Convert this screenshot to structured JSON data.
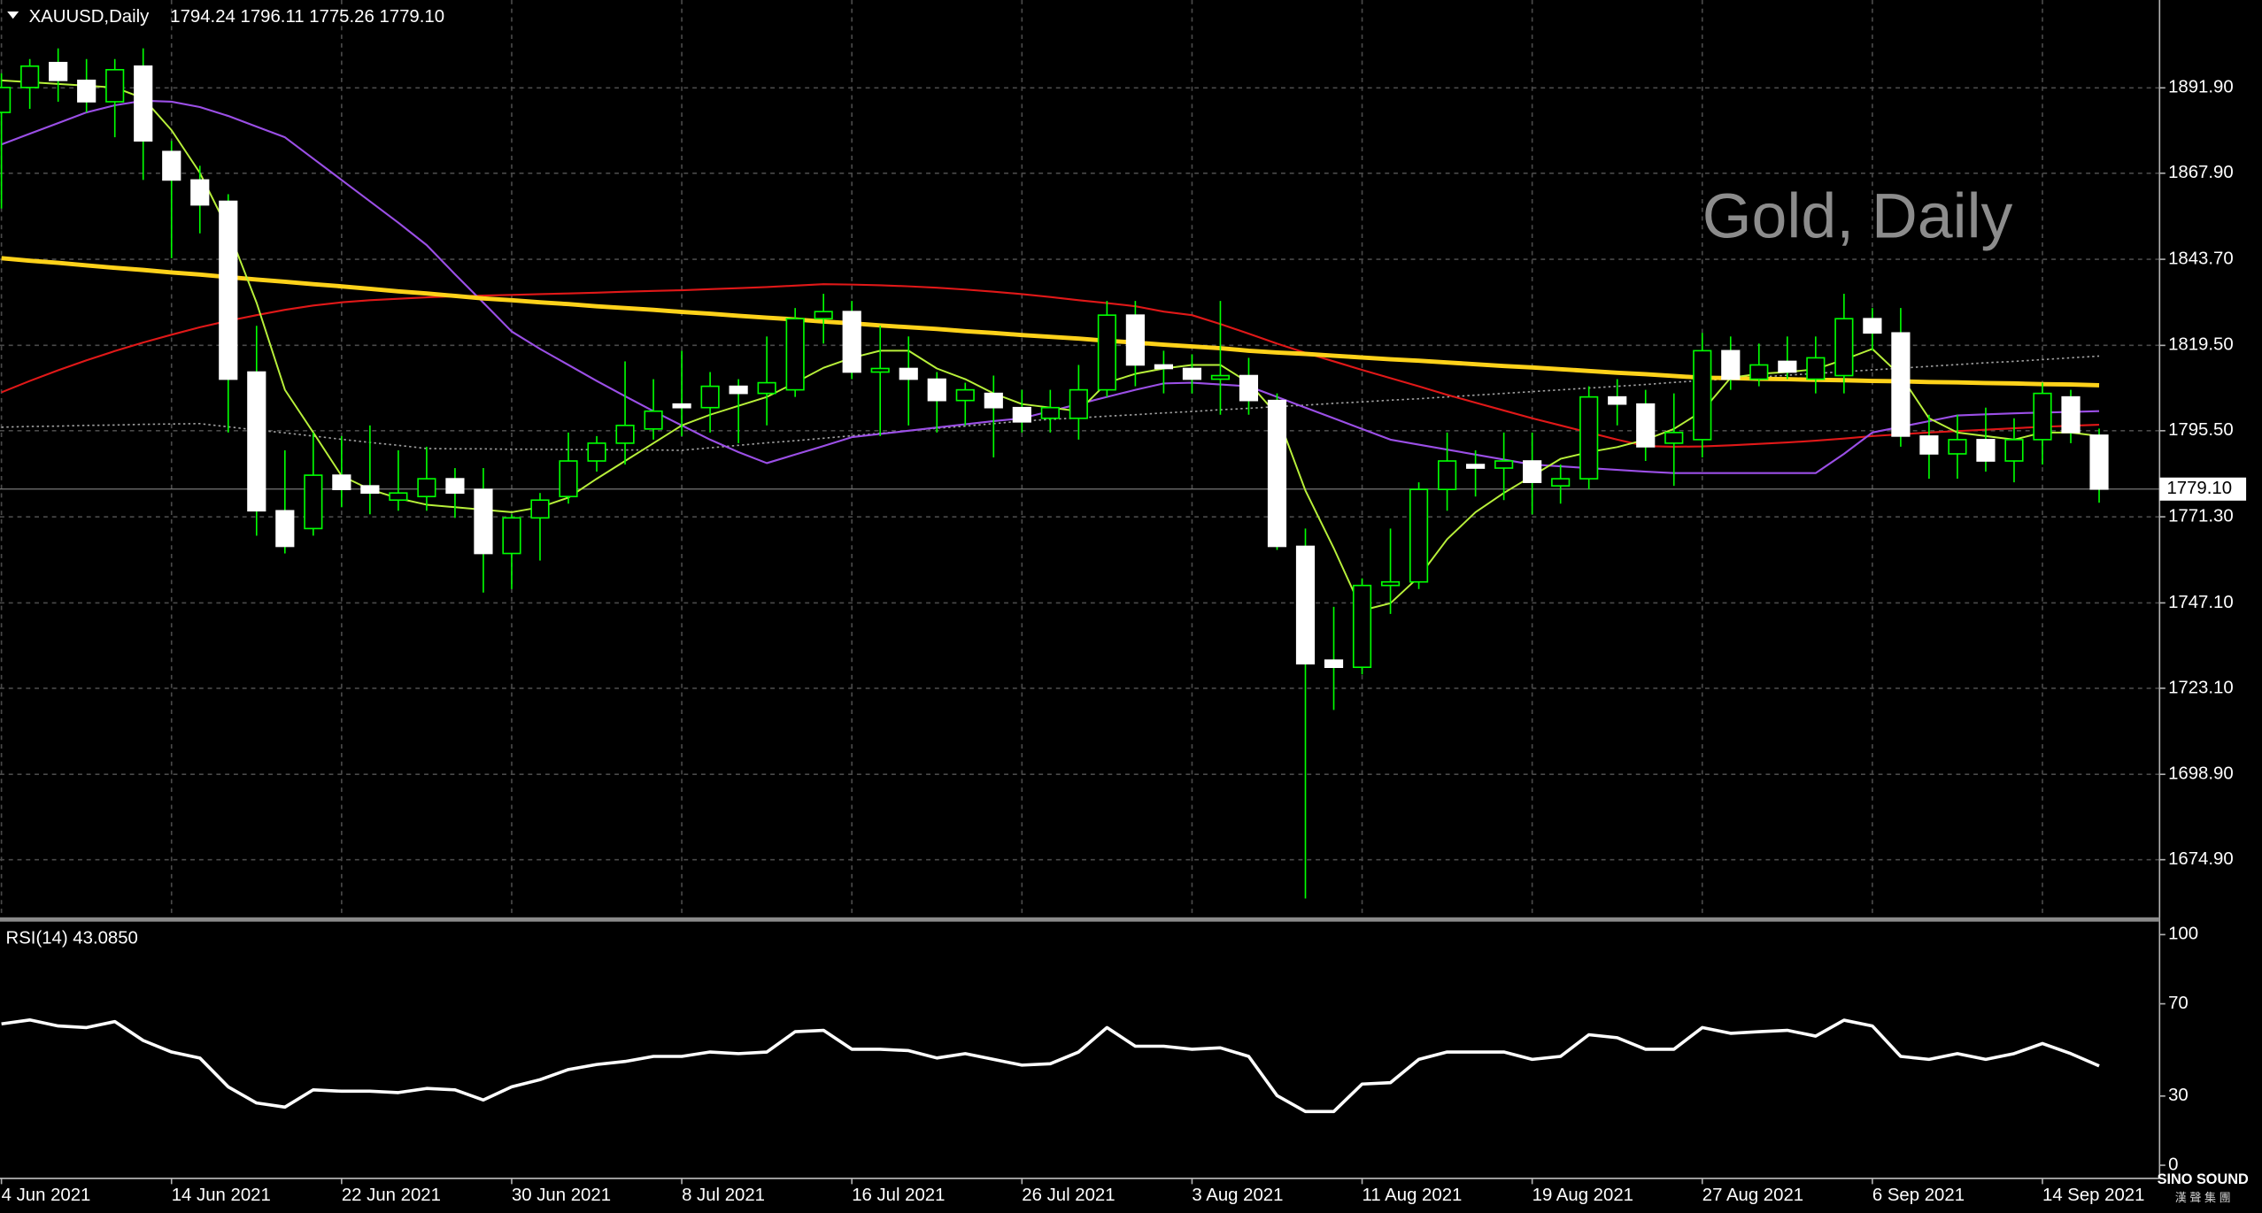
{
  "header": {
    "symbol": "XAUUSD,Daily",
    "ohlc": "1794.24 1796.11 1775.26 1779.10"
  },
  "watermark": "Gold, Daily",
  "logo": {
    "name": "SINO SOUND",
    "subtitle": "漢 聲 集 團"
  },
  "chart_data": [
    {
      "type": "candlestick",
      "categories": [
        "4 Jun 2021",
        null,
        null,
        null,
        null,
        null,
        "14 Jun 2021",
        null,
        null,
        null,
        null,
        null,
        "22 Jun 2021",
        null,
        null,
        null,
        null,
        null,
        "30 Jun 2021",
        null,
        null,
        null,
        null,
        null,
        "8 Jul 2021",
        null,
        null,
        null,
        null,
        null,
        "16 Jul 2021",
        null,
        null,
        null,
        null,
        null,
        "26 Jul 2021",
        null,
        null,
        null,
        null,
        null,
        "3 Aug 2021",
        null,
        null,
        null,
        null,
        null,
        "11 Aug 2021",
        null,
        null,
        null,
        null,
        null,
        "19 Aug 2021",
        null,
        null,
        null,
        null,
        null,
        "27 Aug 2021",
        null,
        null,
        null,
        null,
        null,
        "6 Sep 2021",
        null,
        null,
        null,
        null,
        null,
        "14 Sep 2021",
        null,
        null
      ],
      "open": [
        1885,
        1892,
        1899,
        1894,
        1888,
        1898,
        1874,
        1866,
        1860,
        1812,
        1773,
        1768,
        1783,
        1780,
        1776,
        1777,
        1782,
        1779,
        1761,
        1771,
        1777,
        1787,
        1792,
        1796,
        1803,
        1802,
        1808,
        1806,
        1807,
        1827,
        1829,
        1812,
        1813,
        1810,
        1804,
        1806,
        1802,
        1799,
        1799,
        1807,
        1828,
        1814,
        1813,
        1810,
        1811,
        1804,
        1763,
        1731,
        1729,
        1752,
        1753,
        1779,
        1786,
        1785,
        1787,
        1780,
        1782,
        1805,
        1803,
        1792,
        1793,
        1818,
        1810,
        1815,
        1810,
        1811,
        1827,
        1823,
        1794,
        1789,
        1793,
        1787,
        1793,
        1805,
        1794.24
      ],
      "high": [
        1896,
        1900,
        1903,
        1900,
        1900,
        1903,
        1877,
        1870,
        1862,
        1825,
        1790,
        1795,
        1794,
        1797,
        1790,
        1791,
        1785,
        1785,
        1772,
        1778,
        1795,
        1794,
        1815,
        1810,
        1818,
        1812,
        1810,
        1822,
        1830,
        1834,
        1832,
        1825,
        1822,
        1812,
        1809,
        1811,
        1807,
        1807,
        1814,
        1832,
        1832,
        1818,
        1817,
        1832,
        1816,
        1806,
        1768,
        1746,
        1754,
        1768,
        1781,
        1795,
        1790,
        1795,
        1795,
        1786,
        1808,
        1810,
        1807,
        1806,
        1823,
        1822,
        1820,
        1822,
        1822,
        1834,
        1830,
        1830,
        1800,
        1800,
        1802,
        1799,
        1809,
        1807,
        1796.11
      ],
      "low": [
        1858,
        1886,
        1888,
        1885,
        1878,
        1866,
        1844,
        1851,
        1795,
        1766,
        1761,
        1766,
        1774,
        1772,
        1773,
        1773,
        1771,
        1750,
        1751,
        1759,
        1775,
        1784,
        1786,
        1793,
        1794,
        1795,
        1792,
        1797,
        1805,
        1820,
        1810,
        1794,
        1797,
        1795,
        1797,
        1788,
        1795,
        1795,
        1793,
        1805,
        1808,
        1806,
        1806,
        1800,
        1800,
        1762,
        1664,
        1717,
        1727,
        1744,
        1751,
        1773,
        1777,
        1776,
        1772,
        1775,
        1779,
        1797,
        1787,
        1780,
        1788,
        1807,
        1808,
        1810,
        1806,
        1806,
        1818,
        1791,
        1782,
        1782,
        1784,
        1781,
        1786,
        1792,
        1775.26
      ],
      "close": [
        1892,
        1898,
        1894,
        1888,
        1897,
        1877,
        1866,
        1859,
        1810,
        1773,
        1763,
        1783,
        1779,
        1778,
        1778,
        1782,
        1778,
        1761,
        1771,
        1776,
        1787,
        1792,
        1797,
        1801,
        1802,
        1808,
        1806,
        1809,
        1827,
        1829,
        1812,
        1813,
        1810,
        1804,
        1807,
        1802,
        1798,
        1802,
        1807,
        1828,
        1814,
        1813,
        1810,
        1811,
        1804,
        1763,
        1730,
        1729,
        1752,
        1753,
        1779,
        1787,
        1785,
        1787,
        1781,
        1782,
        1805,
        1803,
        1791,
        1795,
        1818,
        1810,
        1814,
        1812,
        1816,
        1827,
        1823,
        1794,
        1789,
        1793,
        1787,
        1793,
        1806,
        1795,
        1779.1
      ],
      "up_color": "#00ff00",
      "down_color": "#ffffff",
      "wick_color": "#00ff00",
      "overlays": [
        {
          "color": "#a0a0a0",
          "style": "dotted",
          "line_width": 1,
          "values": [
            1796.5,
            1796.7,
            1796.8,
            1797.0,
            1797.1,
            1797.3,
            1797.4,
            1797.5,
            1796.6,
            1795.7,
            1794.9,
            1794.0,
            1793.1,
            1792.2,
            1791.4,
            1790.5,
            1790.4,
            1790.4,
            1790.3,
            1790.3,
            1790.2,
            1790.2,
            1790.1,
            1790.1,
            1790.0,
            1790.7,
            1791.4,
            1792.1,
            1792.7,
            1793.4,
            1794.1,
            1794.8,
            1795.5,
            1796.2,
            1796.8,
            1797.5,
            1798.2,
            1798.7,
            1799.1,
            1799.6,
            1800.0,
            1800.5,
            1800.9,
            1801.4,
            1801.8,
            1802.3,
            1802.7,
            1803.2,
            1803.6,
            1804.1,
            1804.5,
            1805.0,
            1805.5,
            1806.0,
            1806.5,
            1807.0,
            1807.5,
            1808.0,
            1808.5,
            1809.1,
            1809.6,
            1810.1,
            1810.6,
            1811.1,
            1811.6,
            1812.1,
            1812.6,
            1813.1,
            1813.6,
            1814.1,
            1814.6,
            1815.0,
            1815.5,
            1816.0,
            1816.5
          ]
        },
        {
          "color": "#e01818",
          "style": "solid",
          "line_width": 1.3,
          "values": [
            1806.3,
            1809.5,
            1812.5,
            1815.3,
            1817.9,
            1820.3,
            1822.5,
            1824.6,
            1826.4,
            1828.0,
            1829.5,
            1830.7,
            1831.6,
            1832.2,
            1832.6,
            1833.0,
            1833.3,
            1833.5,
            1833.7,
            1833.9,
            1834.1,
            1834.3,
            1834.6,
            1834.8,
            1835.0,
            1835.3,
            1835.6,
            1835.9,
            1836.3,
            1836.7,
            1836.6,
            1836.4,
            1836.1,
            1835.7,
            1835.2,
            1834.6,
            1833.9,
            1833.1,
            1832.2,
            1831.4,
            1830.5,
            1829.0,
            1828.0,
            1825.5,
            1822.8,
            1820.0,
            1817.4,
            1815.0,
            1812.6,
            1810.3,
            1808.0,
            1805.6,
            1803.4,
            1801.2,
            1799.0,
            1797.0,
            1795.0,
            1793.0,
            1791.2,
            1791.0,
            1791.1,
            1791.4,
            1791.8,
            1792.2,
            1792.7,
            1793.3,
            1794.0,
            1794.5,
            1795.0,
            1795.4,
            1795.8,
            1796.2,
            1796.6,
            1796.9,
            1797.2
          ]
        },
        {
          "color": "#9b4fe6",
          "style": "solid",
          "line_width": 1.3,
          "values": [
            1876.0,
            1879.0,
            1882.0,
            1885.0,
            1887.0,
            1888.3,
            1888.0,
            1886.5,
            1884.0,
            1881.0,
            1878.0,
            1872.0,
            1866.0,
            1860.0,
            1854.0,
            1847.7,
            1839.5,
            1831.5,
            1823.4,
            1818.5,
            1814.0,
            1809.5,
            1805.2,
            1801.0,
            1797.0,
            1793.0,
            1789.5,
            1786.4,
            1788.8,
            1791.2,
            1793.7,
            1794.6,
            1795.5,
            1796.4,
            1797.3,
            1798.2,
            1799.0,
            1801.0,
            1803.0,
            1805.0,
            1807.0,
            1808.8,
            1809.0,
            1808.5,
            1808.0,
            1805.0,
            1802.0,
            1799.0,
            1796.0,
            1793.0,
            1791.6,
            1790.2,
            1788.8,
            1787.4,
            1786.0,
            1785.5,
            1785.0,
            1784.5,
            1784.0,
            1783.6,
            1783.6,
            1783.6,
            1783.6,
            1783.6,
            1783.6,
            1789.0,
            1795.0,
            1796.6,
            1798.2,
            1799.8,
            1800.1,
            1800.4,
            1800.6,
            1800.8,
            1801.0
          ]
        },
        {
          "color": "#ffd21a",
          "style": "solid",
          "line_width": 3,
          "values": [
            1844.0,
            1843.3,
            1842.7,
            1842.0,
            1841.3,
            1840.7,
            1840.0,
            1839.4,
            1838.7,
            1838.0,
            1837.4,
            1836.7,
            1836.1,
            1835.4,
            1834.7,
            1834.1,
            1833.4,
            1832.7,
            1832.2,
            1831.6,
            1831.1,
            1830.5,
            1830.0,
            1829.5,
            1828.9,
            1828.4,
            1827.8,
            1827.3,
            1826.8,
            1826.2,
            1825.7,
            1825.1,
            1824.6,
            1824.1,
            1823.5,
            1823.0,
            1822.4,
            1821.9,
            1821.4,
            1820.8,
            1820.3,
            1819.7,
            1819.2,
            1818.7,
            1818.0,
            1817.5,
            1817.1,
            1816.6,
            1816.1,
            1815.6,
            1815.2,
            1814.7,
            1814.2,
            1813.7,
            1813.3,
            1812.8,
            1812.3,
            1811.8,
            1811.4,
            1810.9,
            1810.4,
            1810.3,
            1810.1,
            1810.0,
            1809.8,
            1809.7,
            1809.5,
            1809.4,
            1809.2,
            1809.1,
            1808.9,
            1808.8,
            1808.6,
            1808.5,
            1808.3
          ]
        },
        {
          "color": "#b8f03a",
          "style": "solid",
          "line_width": 1.2,
          "values": [
            1894.0,
            1893.5,
            1893.0,
            1892.5,
            1892.0,
            1889.0,
            1880.0,
            1868.0,
            1852.0,
            1831.5,
            1807.0,
            1795.0,
            1782.8,
            1779.0,
            1776.5,
            1774.7,
            1774.0,
            1773.3,
            1772.6,
            1774.0,
            1776.7,
            1782.0,
            1787.0,
            1792.0,
            1797.0,
            1800.0,
            1802.5,
            1805.0,
            1809.0,
            1813.2,
            1816.0,
            1818.0,
            1818.0,
            1813.0,
            1810.0,
            1806.0,
            1803.0,
            1802.0,
            1801.0,
            1809.0,
            1811.5,
            1813.0,
            1814.0,
            1814.0,
            1809.0,
            1800.0,
            1778.7,
            1762.5,
            1745.0,
            1747.0,
            1754.4,
            1765.0,
            1772.6,
            1778.0,
            1782.8,
            1787.6,
            1789.5,
            1790.9,
            1793.0,
            1796.0,
            1801.0,
            1810.4,
            1811.5,
            1812.0,
            1812.8,
            1815.5,
            1818.5,
            1811.0,
            1799.0,
            1795.0,
            1794.0,
            1793.0,
            1795.0,
            1795.0,
            1794.0
          ]
        }
      ],
      "current_price": {
        "value": 1779.1,
        "label": "1779.10"
      },
      "ylim": [
        1658.7,
        1916.6
      ],
      "yticks": [
        {
          "value": 1891.9,
          "label": "1891.90"
        },
        {
          "value": 1867.9,
          "label": "1867.90"
        },
        {
          "value": 1843.7,
          "label": "1843.70"
        },
        {
          "value": 1819.5,
          "label": "1819.50"
        },
        {
          "value": 1795.5,
          "label": "1795.50"
        },
        {
          "value": 1771.3,
          "label": "1771.30"
        },
        {
          "value": 1747.1,
          "label": "1747.10"
        },
        {
          "value": 1723.1,
          "label": "1723.10"
        },
        {
          "value": 1698.9,
          "label": "1698.90"
        },
        {
          "value": 1674.9,
          "label": "1674.90"
        }
      ],
      "grid": true
    },
    {
      "type": "line",
      "title": "RSI(14) 43.0850",
      "color": "#ffffff",
      "values": [
        61.3,
        63.0,
        60.4,
        59.7,
        62.3,
        54.1,
        49.1,
        46.5,
        34.0,
        27.0,
        25.2,
        32.7,
        32.1,
        32.1,
        31.5,
        33.3,
        32.7,
        28.3,
        34.0,
        37.1,
        41.5,
        43.7,
        45.0,
        47.2,
        47.2,
        49.1,
        48.4,
        49.1,
        57.9,
        58.5,
        50.3,
        50.3,
        49.7,
        46.5,
        48.4,
        45.9,
        43.4,
        44.0,
        49.1,
        59.7,
        51.6,
        51.6,
        50.3,
        50.9,
        47.2,
        30.2,
        23.3,
        23.3,
        35.2,
        35.8,
        45.9,
        49.1,
        49.1,
        49.1,
        45.9,
        47.2,
        56.6,
        55.3,
        50.3,
        50.3,
        59.7,
        57.2,
        57.9,
        58.5,
        56.0,
        62.9,
        60.4,
        47.2,
        45.9,
        48.4,
        45.9,
        48.4,
        52.8,
        48.4,
        43.085
      ],
      "ylim": [
        -5.7,
        105
      ],
      "yticks": [
        100,
        70,
        30,
        0
      ],
      "grid": false
    }
  ]
}
